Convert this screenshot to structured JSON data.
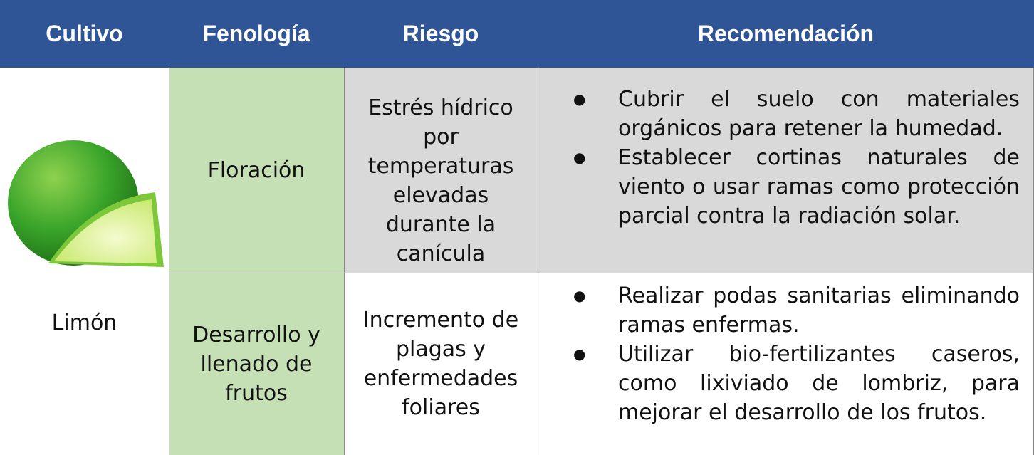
{
  "header": [
    "Cultivo",
    "Fenología",
    "Riesgo",
    "Recomendación"
  ],
  "crop": "Limón",
  "rows": [
    {
      "phase": "Floración",
      "risk": "Estrés hídrico por temperaturas elevadas durante la canícula",
      "recommendations": [
        "Cubrir el suelo con materiales orgánicos para retener la humedad.",
        "Establecer cortinas naturales de viento o usar ramas como protección parcial contra la radiación solar."
      ]
    },
    {
      "phase": "Desarrollo y llenado de frutos",
      "risk": "Incremento de plagas y enfermedades foliares",
      "recommendations": [
        "Realizar podas sanitarias eliminando ramas enfermas.",
        "Utilizar bio-fertilizantes caseros, como lixiviado de lombriz, para mejorar el desarrollo de los frutos."
      ]
    }
  ]
}
